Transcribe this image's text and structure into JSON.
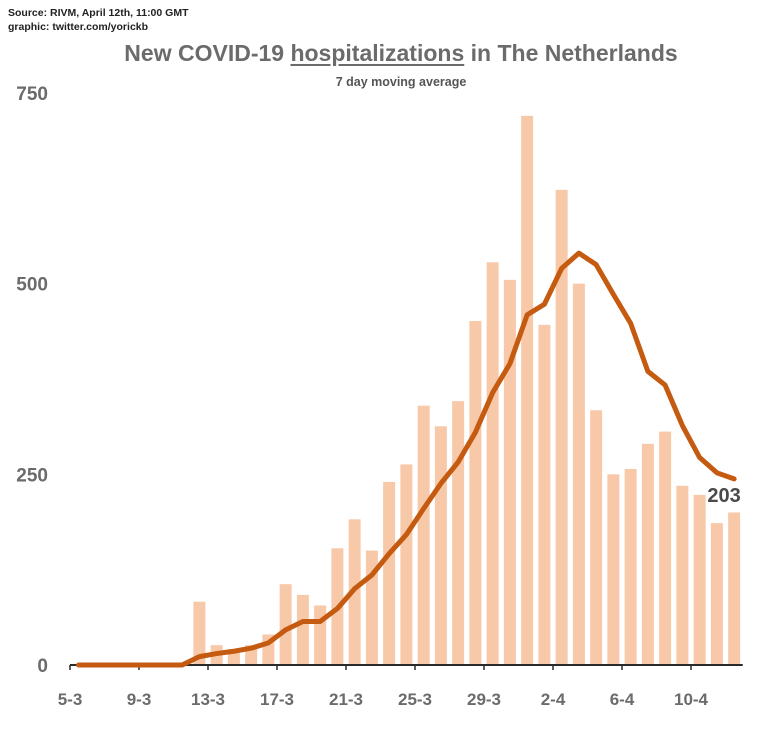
{
  "source": {
    "line1": "Source: RIVM, April 12th, 11:00 GMT",
    "line2": "graphic: twitter.com/yorickb"
  },
  "title": {
    "prefix": "New COVID-19 ",
    "underlined": "hospitalizations",
    "suffix": " in The Netherlands"
  },
  "subtitle": "7 day moving average",
  "colors": {
    "bars": "#f8c9a8",
    "line": "#c55a11",
    "axis": "#2a2a2a",
    "text": "#6b6b6b"
  },
  "chart_data": {
    "type": "bar",
    "title": "New COVID-19 hospitalizations in The Netherlands",
    "subtitle": "7 day moving average",
    "ylim": [
      0,
      750
    ],
    "yticks": [
      0,
      250,
      500,
      750
    ],
    "grid": false,
    "categories": [
      "5-3",
      "6-3",
      "7-3",
      "8-3",
      "9-3",
      "10-3",
      "11-3",
      "12-3",
      "13-3",
      "14-3",
      "15-3",
      "16-3",
      "17-3",
      "18-3",
      "19-3",
      "20-3",
      "21-3",
      "22-3",
      "23-3",
      "24-3",
      "25-3",
      "26-3",
      "27-3",
      "28-3",
      "29-3",
      "30-3",
      "31-3",
      "1-4",
      "2-4",
      "3-4",
      "4-4",
      "5-4",
      "6-4",
      "7-4",
      "8-4",
      "9-4",
      "10-4",
      "11-4",
      "12-4"
    ],
    "xtick_labels": [
      "5-3",
      "9-3",
      "13-3",
      "17-3",
      "21-3",
      "25-3",
      "29-3",
      "2-4",
      "6-4",
      "10-4"
    ],
    "series": [
      {
        "kind": "bar",
        "values": [
          0,
          0,
          0,
          0,
          0,
          0,
          0,
          83,
          26,
          21,
          26,
          40,
          106,
          92,
          78,
          153,
          191,
          150,
          240,
          263,
          340,
          313,
          346,
          451,
          528,
          505,
          720,
          446,
          623,
          500,
          334,
          250,
          257,
          290,
          306,
          235,
          223,
          186,
          200
        ]
      },
      {
        "kind": "line",
        "values": [
          0,
          0,
          0,
          0,
          0,
          0,
          0,
          11,
          15,
          18,
          22,
          29,
          46,
          57,
          57,
          74,
          100,
          118,
          146,
          171,
          205,
          238,
          266,
          305,
          357,
          395,
          459,
          473,
          520,
          540,
          525,
          486,
          448,
          385,
          367,
          314,
          272,
          252,
          244
        ]
      }
    ],
    "annotations": [
      {
        "text": "203"
      }
    ]
  }
}
